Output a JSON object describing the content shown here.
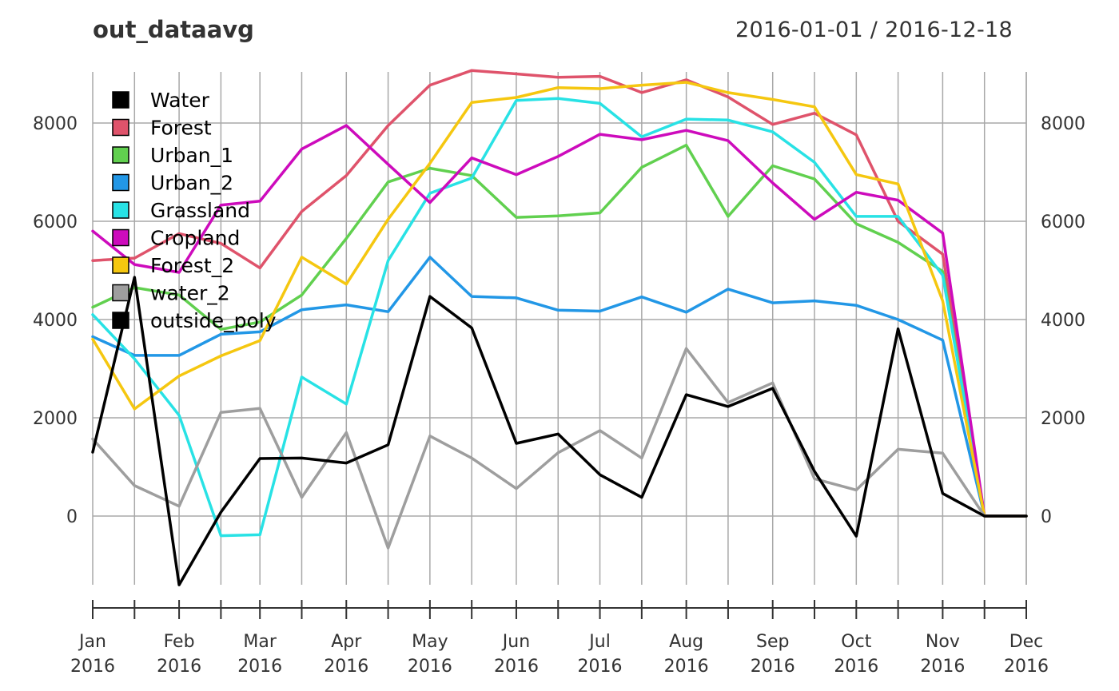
{
  "header": {
    "title": "out_dataavg",
    "date_range": "2016-01-01 / 2016-12-18"
  },
  "chart_data": {
    "type": "line",
    "title": "out_dataavg",
    "subtitle": "2016-01-01 / 2016-12-18",
    "x": [
      "2016-01-01",
      "2016-01-16",
      "2016-02-01",
      "2016-02-16",
      "2016-03-01",
      "2016-03-16",
      "2016-04-01",
      "2016-04-16",
      "2016-05-01",
      "2016-05-16",
      "2016-06-01",
      "2016-06-16",
      "2016-07-01",
      "2016-07-16",
      "2016-08-01",
      "2016-08-16",
      "2016-09-01",
      "2016-09-16",
      "2016-10-01",
      "2016-10-16",
      "2016-11-01",
      "2016-11-16",
      "2016-12-01"
    ],
    "xlim": [
      "2016-01-01",
      "2016-12-01"
    ],
    "ylim": [
      -1800,
      9100
    ],
    "yticks": [
      0,
      2000,
      4000,
      6000,
      8000
    ],
    "ytick_labels": [
      "0",
      "2000",
      "4000",
      "6000",
      "8000"
    ],
    "xticks": [
      {
        "date": "2016-01-01",
        "month": "Jan",
        "year": "2016"
      },
      {
        "date": "2016-02-01",
        "month": "Feb",
        "year": "2016"
      },
      {
        "date": "2016-03-01",
        "month": "Mar",
        "year": "2016"
      },
      {
        "date": "2016-04-01",
        "month": "Apr",
        "year": "2016"
      },
      {
        "date": "2016-05-01",
        "month": "May",
        "year": "2016"
      },
      {
        "date": "2016-06-01",
        "month": "Jun",
        "year": "2016"
      },
      {
        "date": "2016-07-01",
        "month": "Jul",
        "year": "2016"
      },
      {
        "date": "2016-08-01",
        "month": "Aug",
        "year": "2016"
      },
      {
        "date": "2016-09-01",
        "month": "Sep",
        "year": "2016"
      },
      {
        "date": "2016-10-01",
        "month": "Oct",
        "year": "2016"
      },
      {
        "date": "2016-11-01",
        "month": "Nov",
        "year": "2016"
      },
      {
        "date": "2016-12-01",
        "month": "Dec",
        "year": "2016"
      }
    ],
    "grid": true,
    "legend_position": "top-left",
    "series": [
      {
        "name": "Water",
        "color": "#000000",
        "values": [
          null,
          null,
          null,
          null,
          null,
          null,
          null,
          null,
          null,
          null,
          null,
          null,
          null,
          null,
          null,
          null,
          null,
          null,
          null,
          null,
          null,
          null,
          null
        ]
      },
      {
        "name": "Forest",
        "color": "#df536b",
        "values": [
          5200,
          5250,
          5750,
          5550,
          5050,
          6200,
          6930,
          7950,
          8770,
          9070,
          9000,
          8930,
          8950,
          8620,
          8880,
          8530,
          7970,
          8200,
          7760,
          6000,
          5330,
          0,
          0
        ]
      },
      {
        "name": "Urban_1",
        "color": "#61d04f",
        "values": [
          4250,
          4650,
          4500,
          3800,
          3950,
          4500,
          5650,
          6800,
          7080,
          6930,
          6080,
          6110,
          6170,
          7100,
          7550,
          6100,
          7130,
          6860,
          5950,
          5570,
          4980,
          0,
          0
        ]
      },
      {
        "name": "Urban_2",
        "color": "#2297e6",
        "values": [
          3650,
          3270,
          3270,
          3700,
          3750,
          4200,
          4300,
          4160,
          5270,
          4470,
          4440,
          4190,
          4170,
          4460,
          4150,
          4620,
          4340,
          4380,
          4290,
          4000,
          3580,
          0,
          0
        ]
      },
      {
        "name": "Grassland",
        "color": "#28e2e5",
        "values": [
          4100,
          3200,
          2050,
          -400,
          -380,
          2830,
          2280,
          5200,
          6570,
          6880,
          8460,
          8500,
          8400,
          7720,
          8080,
          8060,
          7820,
          7200,
          6100,
          6100,
          4900,
          0,
          0
        ]
      },
      {
        "name": "Cropland",
        "color": "#cd0bbc",
        "values": [
          5800,
          5120,
          4960,
          6330,
          6410,
          7470,
          7950,
          7160,
          6380,
          7290,
          6950,
          7320,
          7770,
          7660,
          7850,
          7640,
          6780,
          6040,
          6590,
          6430,
          5760,
          0,
          0
        ]
      },
      {
        "name": "Forest_2",
        "color": "#f5c710",
        "values": [
          3600,
          2180,
          2850,
          3260,
          3570,
          5270,
          4720,
          6040,
          7180,
          8420,
          8520,
          8720,
          8700,
          8770,
          8830,
          8620,
          8480,
          8330,
          6950,
          6760,
          4380,
          0,
          0
        ]
      },
      {
        "name": "water_2",
        "color": "#9e9e9e",
        "values": [
          1570,
          620,
          200,
          2110,
          2190,
          380,
          1700,
          -650,
          1630,
          1180,
          560,
          1290,
          1740,
          1180,
          3410,
          2310,
          2710,
          760,
          530,
          1360,
          1280,
          0,
          0
        ]
      },
      {
        "name": "outside_poly",
        "color": "#000000",
        "values": [
          1300,
          4860,
          -1400,
          80,
          1170,
          1180,
          1080,
          1450,
          4470,
          3830,
          1480,
          1670,
          840,
          380,
          2470,
          2230,
          2600,
          910,
          -410,
          3810,
          460,
          0,
          0
        ]
      }
    ]
  }
}
